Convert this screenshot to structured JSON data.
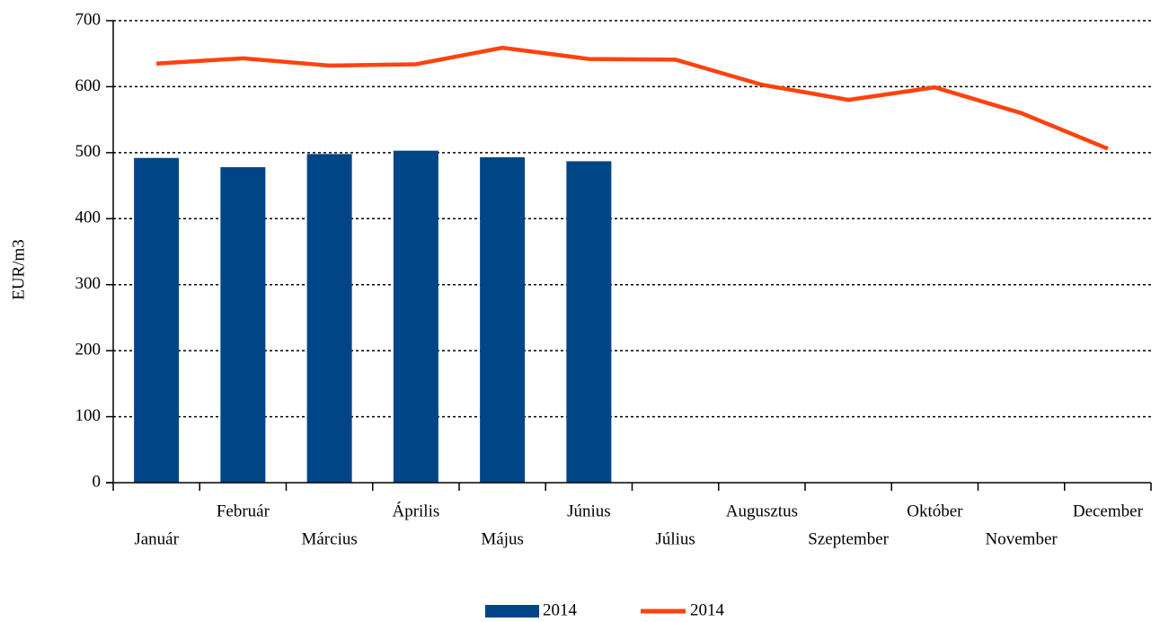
{
  "chart_data": {
    "type": "bar",
    "y_label": "EUR/m3",
    "categories": [
      "Január",
      "Február",
      "Március",
      "Április",
      "Május",
      "Június",
      "Július",
      "Augusztus",
      "Szeptember",
      "Október",
      "November",
      "December"
    ],
    "series": [
      {
        "name": "2014",
        "type": "bar",
        "color": "#004586",
        "values": [
          492,
          478,
          498,
          503,
          493,
          487,
          null,
          null,
          null,
          null,
          null,
          null
        ]
      },
      {
        "name": "2014",
        "type": "line",
        "color": "#ff420e",
        "values": [
          635,
          643,
          632,
          634,
          659,
          642,
          641,
          603,
          580,
          599,
          560,
          506
        ]
      }
    ],
    "ylim": [
      0,
      700
    ],
    "yticks": [
      0,
      100,
      200,
      300,
      400,
      500,
      600,
      700
    ],
    "grid": true,
    "legend": "bottom"
  }
}
